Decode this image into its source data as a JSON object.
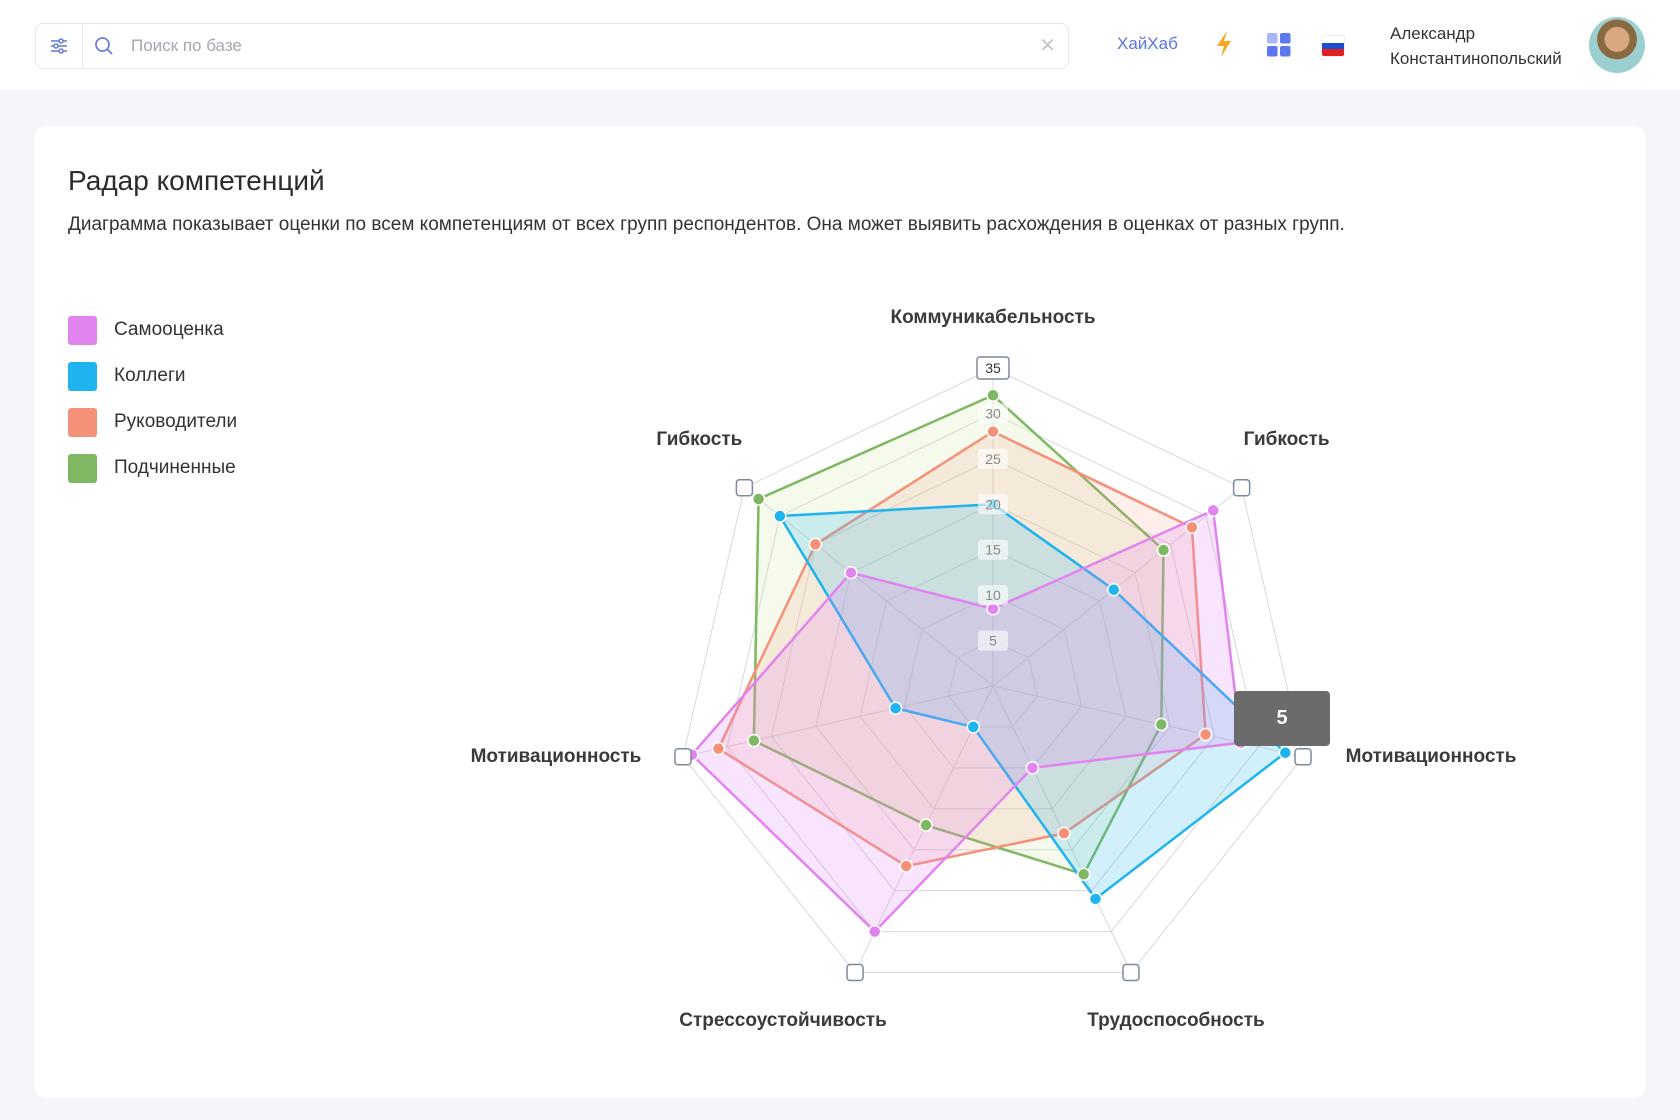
{
  "header": {
    "search_placeholder": "Поиск по базе",
    "hub_link": "ХайХаб",
    "user_first": "Александр",
    "user_last": "Константинопольский",
    "icons": [
      "filter-icon",
      "search-icon",
      "close-icon",
      "bolt-icon",
      "apps-grid-icon",
      "russia-flag-icon",
      "avatar"
    ]
  },
  "page": {
    "title": "Радар компетенций",
    "description": "Диаграмма показывает оценки по всем компетенциям от всех групп респондентов. Она может выявить расхождения в оценках от разных групп."
  },
  "tooltip": {
    "value": "5"
  },
  "chart_data": {
    "type": "radar",
    "axes": [
      "Коммуникабельность",
      "Гибкость",
      "Мотивационность",
      "Трудоспособность",
      "Стрессоустойчивость",
      "Мотивационность",
      "Гибкость"
    ],
    "ticks": [
      "5",
      "10",
      "15",
      "20",
      "25",
      "30",
      "35"
    ],
    "range": [
      0,
      35
    ],
    "legend_position": "left",
    "series": [
      {
        "name": "Самооценка",
        "color": "#e184f0",
        "values": [
          8.5,
          31,
          28,
          10,
          30,
          34,
          20
        ]
      },
      {
        "name": "Коллеги",
        "color": "#1fb3f0",
        "values": [
          20,
          17,
          33,
          26,
          5,
          11,
          30
        ]
      },
      {
        "name": "Руководители",
        "color": "#f59178",
        "values": [
          28,
          28,
          24,
          18,
          22,
          31,
          25
        ]
      },
      {
        "name": "Подчиненные",
        "color": "#7fb863",
        "values": [
          32,
          24,
          19,
          23,
          17,
          27,
          33
        ]
      }
    ]
  }
}
